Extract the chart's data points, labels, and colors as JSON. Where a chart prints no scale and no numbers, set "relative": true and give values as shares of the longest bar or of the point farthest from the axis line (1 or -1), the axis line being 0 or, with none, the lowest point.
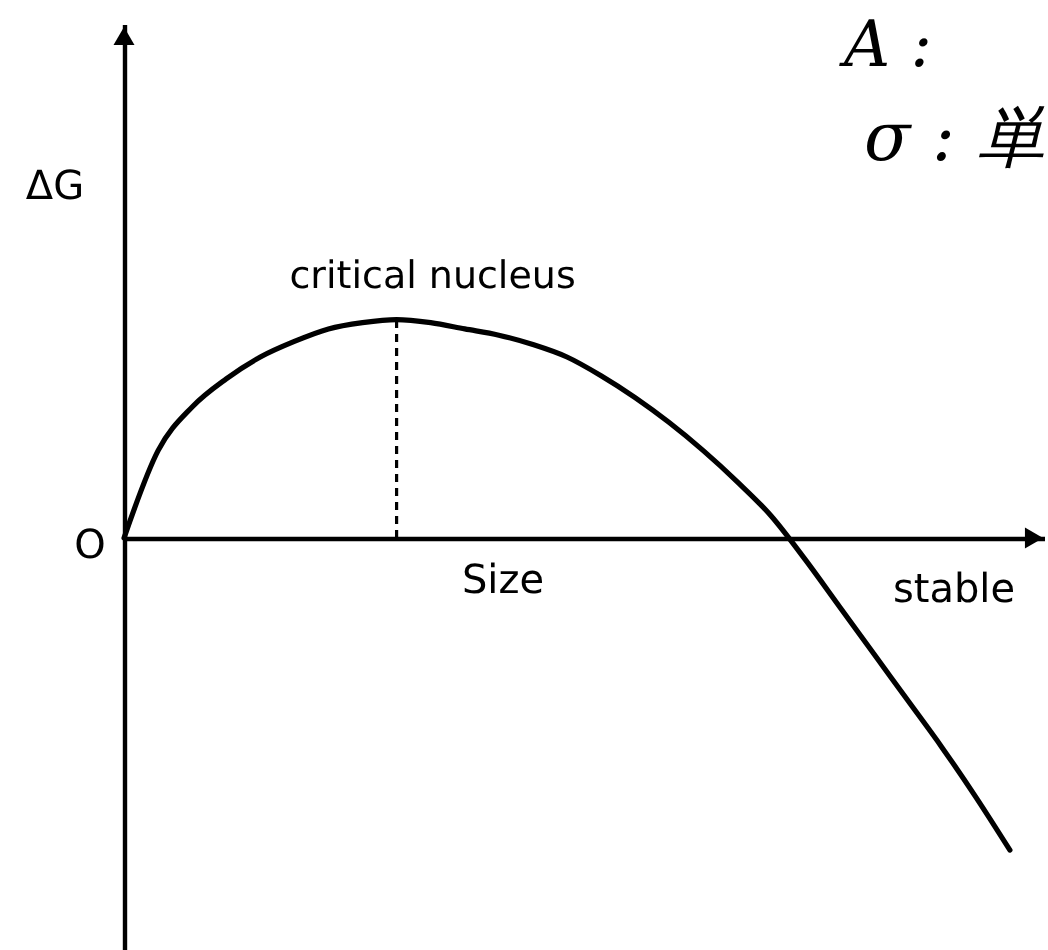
{
  "chart_data": {
    "type": "line",
    "xlabel": "Size",
    "ylabel": "ΔG",
    "relative": true,
    "categories": [
      null,
      null,
      null,
      null,
      null,
      null,
      null,
      null,
      null,
      null,
      null,
      null,
      null,
      null,
      null,
      null,
      null,
      null,
      null,
      null,
      null,
      null,
      null,
      null,
      null,
      null,
      null
    ],
    "series": [
      {
        "color": "#000000",
        "values": [
          0,
          0.28,
          0.42,
          0.51,
          0.58,
          0.63,
          0.67,
          0.69,
          0.7,
          0.69,
          0.67,
          0.65,
          0.62,
          0.58,
          0.52,
          0.45,
          0.37,
          0.28,
          0.18,
          0.07,
          -0.07,
          -0.22,
          -0.37,
          -0.52,
          -0.67,
          -0.83,
          -1
        ]
      }
    ],
    "annotations": [
      "critical nucleus",
      "O",
      "stable",
      "A :",
      "σ : 単"
    ]
  }
}
